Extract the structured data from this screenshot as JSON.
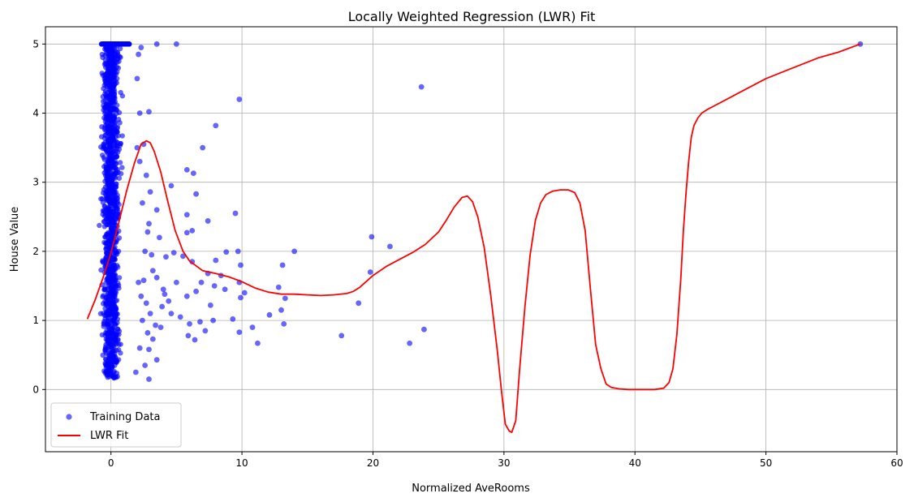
{
  "chart_data": {
    "type": "scatter",
    "title": "Locally Weighted Regression (LWR) Fit",
    "xlabel": "Normalized AveRooms",
    "ylabel": "House Value",
    "xlim": [
      -5,
      60
    ],
    "ylim": [
      -0.9,
      5.25
    ],
    "xticks": [
      0,
      10,
      20,
      30,
      40,
      50,
      60
    ],
    "yticks": [
      0,
      1,
      2,
      3,
      4,
      5
    ],
    "grid": true,
    "legend_position": "bottom-left",
    "series": [
      {
        "name": "Training Data",
        "kind": "scatter",
        "color": "#0000ff",
        "points": [
          [
            3.5,
            5.0
          ],
          [
            5.0,
            5.0
          ],
          [
            9.8,
            4.2
          ],
          [
            23.7,
            4.38
          ],
          [
            2.9,
            4.02
          ],
          [
            8.0,
            3.82
          ],
          [
            7.0,
            3.5
          ],
          [
            5.8,
            3.18
          ],
          [
            6.3,
            3.13
          ],
          [
            2.0,
            3.5
          ],
          [
            4.6,
            2.95
          ],
          [
            3.0,
            2.86
          ],
          [
            6.5,
            2.83
          ],
          [
            9.5,
            2.55
          ],
          [
            5.8,
            2.53
          ],
          [
            3.5,
            2.6
          ],
          [
            7.4,
            2.44
          ],
          [
            6.2,
            2.3
          ],
          [
            5.8,
            2.27
          ],
          [
            2.8,
            2.28
          ],
          [
            19.9,
            2.21
          ],
          [
            21.3,
            2.07
          ],
          [
            14.0,
            2.0
          ],
          [
            9.7,
            2.0
          ],
          [
            8.8,
            1.99
          ],
          [
            4.8,
            1.98
          ],
          [
            5.5,
            1.93
          ],
          [
            13.1,
            1.8
          ],
          [
            9.9,
            1.8
          ],
          [
            8.0,
            1.87
          ],
          [
            6.2,
            1.85
          ],
          [
            7.4,
            1.68
          ],
          [
            8.4,
            1.65
          ],
          [
            19.8,
            1.7
          ],
          [
            9.8,
            1.55
          ],
          [
            12.8,
            1.48
          ],
          [
            8.7,
            1.45
          ],
          [
            6.5,
            1.42
          ],
          [
            10.2,
            1.4
          ],
          [
            13.3,
            1.32
          ],
          [
            18.9,
            1.25
          ],
          [
            7.6,
            1.22
          ],
          [
            9.9,
            1.33
          ],
          [
            13.0,
            1.15
          ],
          [
            12.1,
            1.08
          ],
          [
            9.3,
            1.02
          ],
          [
            7.8,
            1.0
          ],
          [
            6.8,
            0.98
          ],
          [
            13.2,
            0.95
          ],
          [
            17.6,
            0.78
          ],
          [
            9.8,
            0.83
          ],
          [
            10.8,
            0.9
          ],
          [
            11.2,
            0.67
          ],
          [
            22.8,
            0.67
          ],
          [
            23.9,
            0.87
          ],
          [
            6.4,
            0.72
          ],
          [
            5.9,
            0.78
          ],
          [
            7.2,
            0.85
          ],
          [
            6.0,
            0.95
          ],
          [
            5.3,
            1.05
          ],
          [
            4.4,
            1.28
          ],
          [
            4.0,
            1.45
          ],
          [
            3.5,
            1.62
          ],
          [
            3.2,
            1.72
          ],
          [
            4.2,
            1.92
          ],
          [
            2.5,
            1.58
          ],
          [
            2.3,
            1.35
          ],
          [
            2.7,
            1.25
          ],
          [
            3.0,
            1.1
          ],
          [
            3.4,
            0.93
          ],
          [
            3.8,
            0.9
          ],
          [
            2.8,
            0.82
          ],
          [
            3.2,
            0.73
          ],
          [
            2.9,
            0.58
          ],
          [
            3.5,
            0.43
          ],
          [
            2.6,
            0.35
          ],
          [
            2.9,
            0.15
          ],
          [
            1.9,
            0.25
          ],
          [
            2.2,
            0.6
          ],
          [
            2.4,
            1.0
          ],
          [
            2.1,
            1.55
          ],
          [
            2.6,
            2.0
          ],
          [
            2.9,
            2.4
          ],
          [
            2.4,
            2.7
          ],
          [
            2.2,
            3.3
          ],
          [
            2.5,
            3.55
          ],
          [
            2.2,
            4.0
          ],
          [
            2.0,
            4.5
          ],
          [
            2.3,
            4.95
          ],
          [
            2.1,
            4.85
          ],
          [
            4.1,
            1.38
          ],
          [
            5.0,
            1.55
          ],
          [
            5.8,
            1.35
          ],
          [
            4.6,
            1.1
          ],
          [
            3.9,
            1.2
          ],
          [
            6.9,
            1.55
          ],
          [
            7.9,
            1.5
          ],
          [
            3.1,
            1.95
          ],
          [
            3.7,
            2.2
          ],
          [
            2.7,
            3.1
          ]
        ],
        "dense_cluster": {
          "x_range": [
            -2,
            2.3
          ],
          "y_range": [
            0.15,
            5.0
          ],
          "x_center": 0,
          "x_spread": 0.65,
          "capped_value": 5.0
        }
      },
      {
        "name": "LWR Fit",
        "kind": "line",
        "color": "#ff0000",
        "x": [
          -1.8,
          -1.2,
          -0.6,
          0,
          0.6,
          1.2,
          1.8,
          2.3,
          2.7,
          3.0,
          3.3,
          3.8,
          4.3,
          4.9,
          5.5,
          6.0,
          7.0,
          8.0,
          9.0,
          10.0,
          11.0,
          12.0,
          13.0,
          14.0,
          15.0,
          16.0,
          17.0,
          18.0,
          18.5,
          19.0,
          20.0,
          21.0,
          22.0,
          23.0,
          24.0,
          25.0,
          25.6,
          26.2,
          26.8,
          27.2,
          27.6,
          28.0,
          28.5,
          29.0,
          29.5,
          29.8,
          30.1,
          30.4,
          30.6,
          30.9,
          31.2,
          31.6,
          32.0,
          32.4,
          32.8,
          33.2,
          33.7,
          34.3,
          34.9,
          35.4,
          35.8,
          36.2,
          36.6,
          37.0,
          37.4,
          37.8,
          38.2,
          38.8,
          39.5,
          40.5,
          41.5,
          42.2,
          42.6,
          42.9,
          43.2,
          43.5,
          43.7,
          43.9,
          44.1,
          44.3,
          44.5,
          44.8,
          45.1,
          45.5,
          46.0,
          48.0,
          50.0,
          52.0,
          54.0,
          55.5,
          57.2
        ],
        "y": [
          1.02,
          1.3,
          1.62,
          1.98,
          2.42,
          2.88,
          3.28,
          3.55,
          3.6,
          3.57,
          3.45,
          3.15,
          2.75,
          2.3,
          2.0,
          1.86,
          1.72,
          1.68,
          1.63,
          1.56,
          1.47,
          1.41,
          1.38,
          1.38,
          1.37,
          1.36,
          1.37,
          1.39,
          1.42,
          1.48,
          1.65,
          1.78,
          1.88,
          1.98,
          2.1,
          2.28,
          2.45,
          2.64,
          2.78,
          2.8,
          2.72,
          2.5,
          2.05,
          1.35,
          0.55,
          0.0,
          -0.5,
          -0.6,
          -0.62,
          -0.45,
          0.3,
          1.2,
          1.95,
          2.45,
          2.7,
          2.82,
          2.87,
          2.89,
          2.89,
          2.85,
          2.7,
          2.3,
          1.45,
          0.65,
          0.3,
          0.08,
          0.03,
          0.01,
          0.0,
          0.0,
          0.0,
          0.02,
          0.1,
          0.3,
          0.8,
          1.6,
          2.3,
          2.85,
          3.3,
          3.65,
          3.82,
          3.93,
          4.0,
          4.05,
          4.1,
          4.3,
          4.5,
          4.65,
          4.8,
          4.88,
          5.0
        ]
      }
    ]
  }
}
